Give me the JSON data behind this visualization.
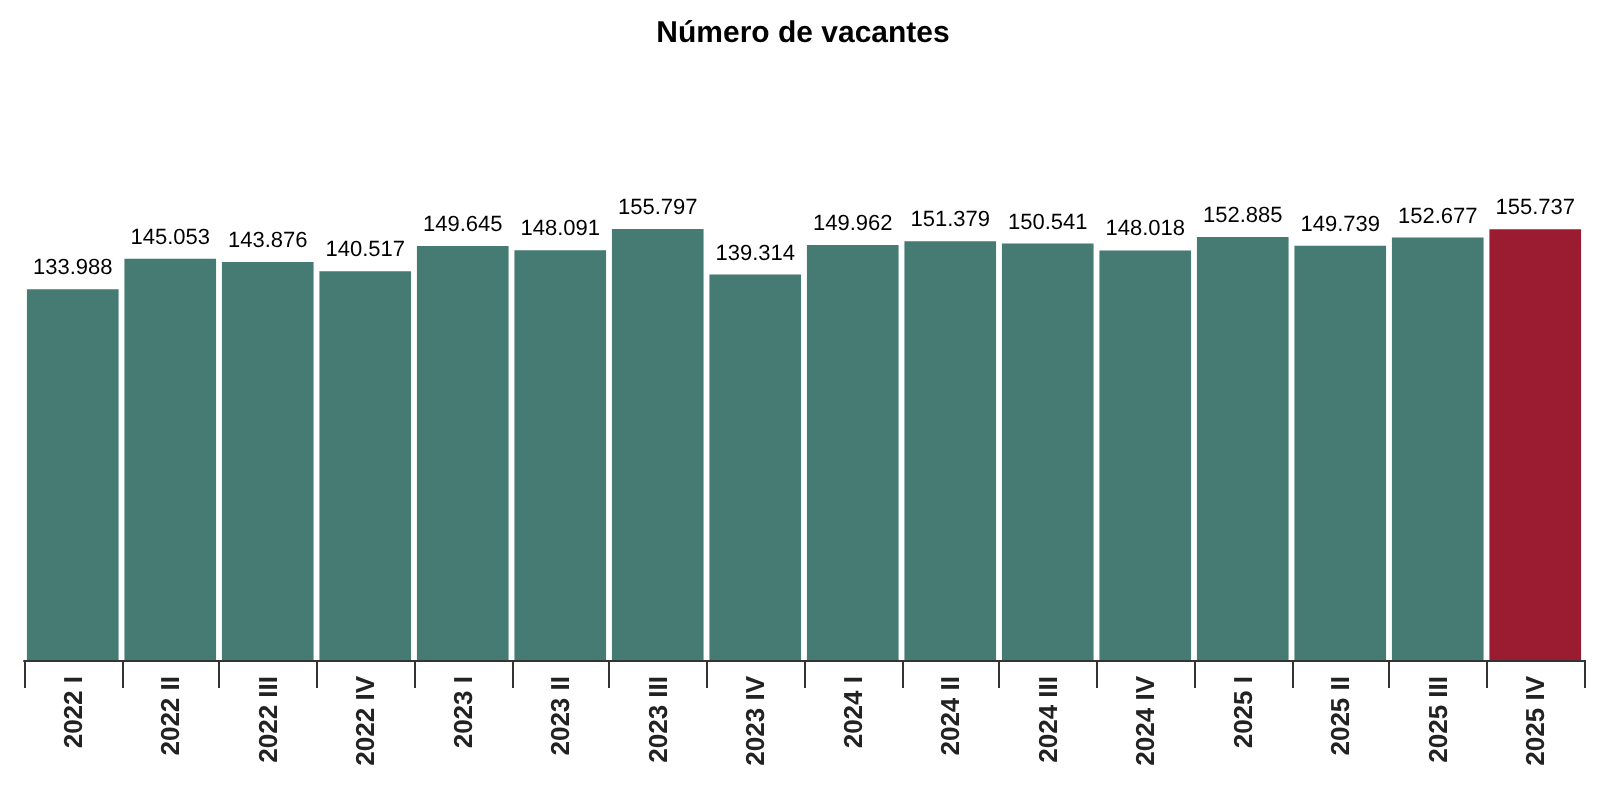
{
  "chart_data": {
    "type": "bar",
    "title": "Número de vacantes",
    "categories": [
      "2022 I",
      "2022 II",
      "2022 III",
      "2022 IV",
      "2023 I",
      "2023 II",
      "2023 III",
      "2023 IV",
      "2024 I",
      "2024 II",
      "2024 III",
      "2024 IV",
      "2025 I",
      "2025 II",
      "2025 III",
      "2025 IV"
    ],
    "values": [
      133988,
      145053,
      143876,
      140517,
      149645,
      148091,
      155797,
      139314,
      149962,
      151379,
      150541,
      148018,
      152885,
      149739,
      152677,
      155737
    ],
    "value_labels": [
      "133.988",
      "145.053",
      "143.876",
      "140.517",
      "149.645",
      "148.091",
      "155.797",
      "139.314",
      "149.962",
      "151.379",
      "150.541",
      "148.018",
      "152.885",
      "149.739",
      "152.677",
      "155.737"
    ],
    "colors": [
      "#457b73",
      "#457b73",
      "#457b73",
      "#457b73",
      "#457b73",
      "#457b73",
      "#457b73",
      "#457b73",
      "#457b73",
      "#457b73",
      "#457b73",
      "#457b73",
      "#457b73",
      "#457b73",
      "#457b73",
      "#9b1b30"
    ]
  }
}
